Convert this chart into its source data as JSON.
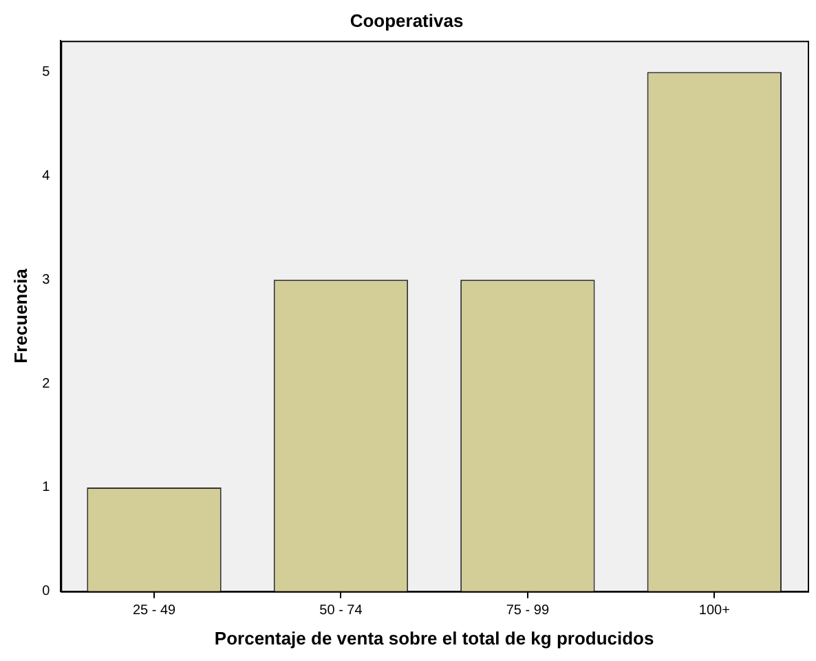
{
  "chart_data": {
    "type": "bar",
    "title": "Cooperativas",
    "xlabel": "Porcentaje de venta sobre el total de kg producidos",
    "ylabel": "Frecuencia",
    "categories": [
      "25 - 49",
      "50 - 74",
      "75 - 99",
      "100+"
    ],
    "values": [
      1,
      3,
      3,
      5
    ],
    "color": "#d3ce97",
    "ylim": [
      0,
      5.3
    ],
    "yticks": [
      0,
      1,
      2,
      3,
      4,
      5
    ],
    "grid": false,
    "legend": false
  }
}
